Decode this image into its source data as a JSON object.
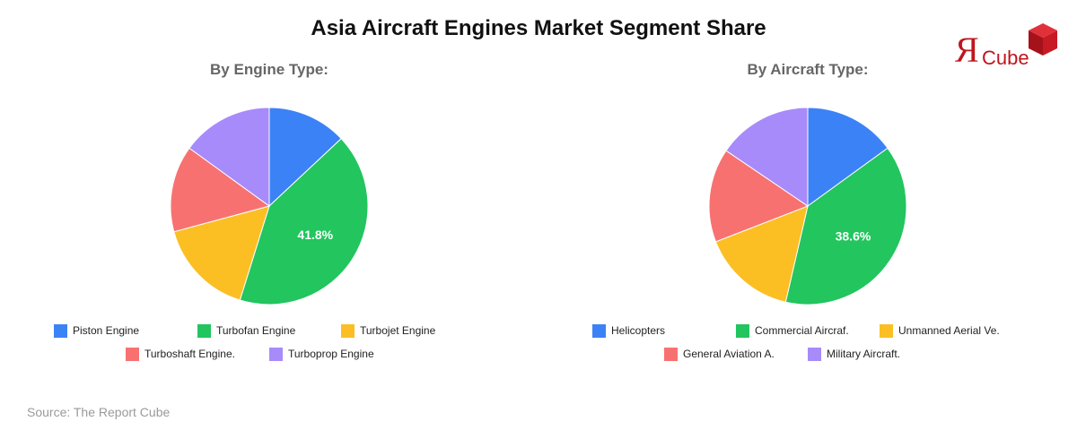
{
  "title": "Asia Aircraft Engines Market Segment Share",
  "logo": {
    "mark": "Я",
    "text": "Cube"
  },
  "source": "Source: The Report Cube",
  "chart_data": [
    {
      "type": "pie",
      "title": "By Engine Type:",
      "labels": [
        "Piston Engine",
        "Turbofan Engine",
        "Turbojet Engine",
        "Turboshaft Engine.",
        "Turboprop Engine"
      ],
      "values": [
        13.0,
        41.8,
        16.0,
        14.2,
        15.0
      ],
      "colors": [
        "#3b82f6",
        "#22c55e",
        "#fbbf24",
        "#f87171",
        "#a78bfa"
      ],
      "data_labels": [
        "",
        "41.8%",
        "",
        "",
        ""
      ]
    },
    {
      "type": "pie",
      "title": "By Aircraft Type:",
      "labels": [
        "Helicopters",
        "Commercial Aircraf.",
        "Unmanned Aerial Ve.",
        "General Aviation A.",
        "Military Aircraft."
      ],
      "values": [
        15.0,
        38.6,
        15.5,
        15.4,
        15.5
      ],
      "colors": [
        "#3b82f6",
        "#22c55e",
        "#fbbf24",
        "#f87171",
        "#a78bfa"
      ],
      "data_labels": [
        "",
        "38.6%",
        "",
        "",
        ""
      ]
    }
  ]
}
